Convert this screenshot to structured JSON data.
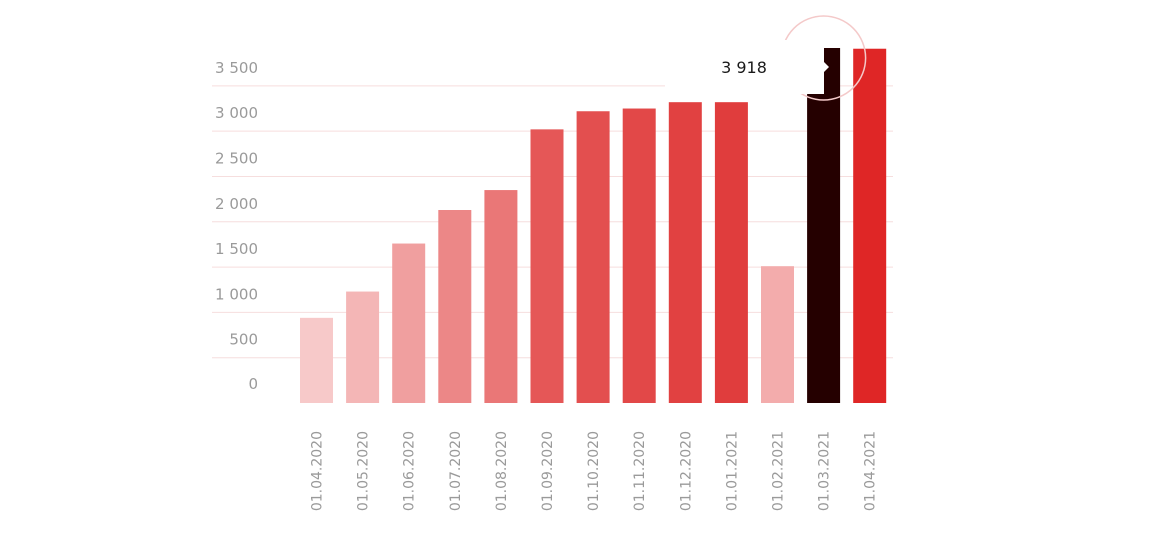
{
  "chart_data": {
    "type": "bar",
    "title": "",
    "xlabel": "",
    "ylabel": "",
    "categories": [
      "01.04.2020",
      "01.05.2020",
      "01.06.2020",
      "01.07.2020",
      "01.08.2020",
      "01.09.2020",
      "01.10.2020",
      "01.11.2020",
      "01.12.2020",
      "01.01.2021",
      "01.02.2021",
      "01.03.2021",
      "01.04.2021"
    ],
    "values": [
      940,
      1230,
      1760,
      2130,
      2350,
      3020,
      3220,
      3250,
      3320,
      3320,
      1510,
      3918,
      3910
    ],
    "bar_colors": [
      "#f7c9c9",
      "#f4b6b6",
      "#f09f9f",
      "#ec8787",
      "#ea7777",
      "#e55757",
      "#e34f4f",
      "#e24848",
      "#e14141",
      "#e03d3d",
      "#f3acac",
      "#250000",
      "#df2626"
    ],
    "yticks": [
      0,
      500,
      1000,
      1500,
      2000,
      2500,
      3000,
      3500
    ],
    "ytick_labels": [
      "0",
      "500",
      "1 000",
      "1 500",
      "2 000",
      "2 500",
      "3 000",
      "3 500"
    ],
    "ylim": [
      0,
      3918
    ],
    "grid": true,
    "highlight_index": 11,
    "tooltip": {
      "label": "3 918"
    }
  }
}
